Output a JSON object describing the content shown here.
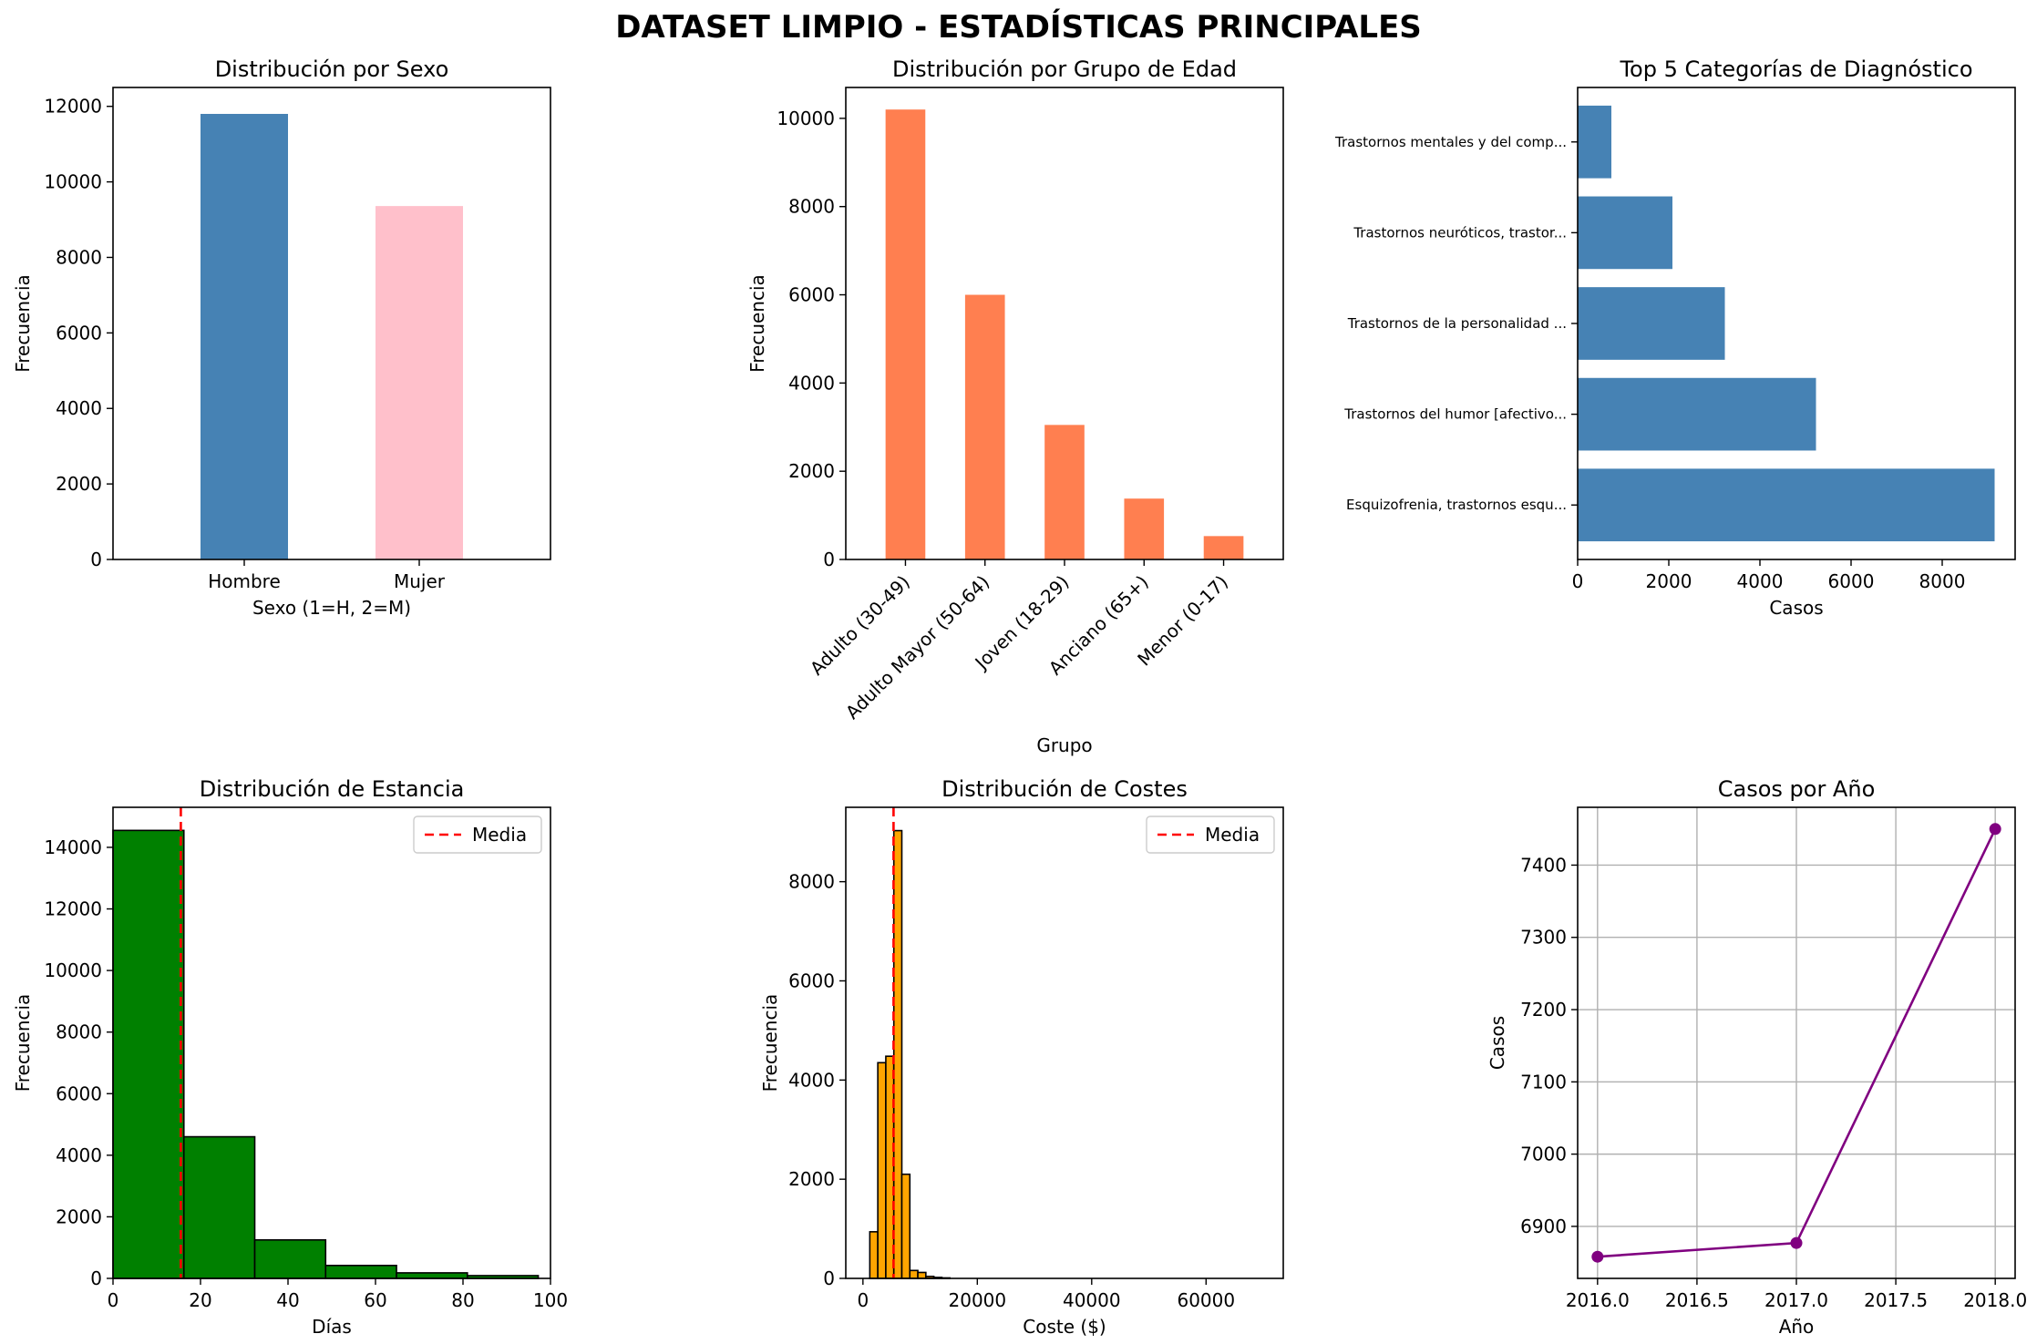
{
  "title": "DATASET LIMPIO - ESTADÍSTICAS PRINCIPALES",
  "chart_data": [
    {
      "id": "sexo",
      "type": "bar",
      "title": "Distribución por Sexo",
      "xlabel": "Sexo (1=H, 2=M)",
      "ylabel": "Frecuencia",
      "categories": [
        "Hombre",
        "Mujer"
      ],
      "values": [
        11800,
        9360
      ],
      "colors": [
        "#4682b4",
        "#ffc0cb"
      ],
      "ylim": [
        0,
        12500
      ],
      "yticks": [
        0,
        2000,
        4000,
        6000,
        8000,
        10000,
        12000
      ],
      "grid": false
    },
    {
      "id": "edad",
      "type": "bar",
      "title": "Distribución por Grupo de Edad",
      "xlabel": "Grupo",
      "ylabel": "Frecuencia",
      "categories": [
        "Adulto (30-49)",
        "Adulto Mayor (50-64)",
        "Joven (18-29)",
        "Anciano (65+)",
        "Menor (0-17)"
      ],
      "values": [
        10200,
        6000,
        3050,
        1380,
        530
      ],
      "color": "#ff7f50",
      "ylim": [
        0,
        10700
      ],
      "yticks": [
        0,
        2000,
        4000,
        6000,
        8000,
        10000
      ],
      "grid": false
    },
    {
      "id": "diagnostico",
      "type": "bar",
      "orientation": "horizontal",
      "title": "Top 5 Categorías de Diagnóstico",
      "xlabel": "Casos",
      "categories": [
        "Esquizofrenia, trastornos esqu...",
        "Trastornos del humor [afectivo...",
        "Trastornos de la personalidad ...",
        "Trastornos neuróticos, trastor...",
        "Trastornos mentales y del comp..."
      ],
      "values": [
        9150,
        5230,
        3230,
        2080,
        740
      ],
      "color": "#4682b4",
      "xlim": [
        0,
        9600
      ],
      "xticks": [
        0,
        2000,
        4000,
        6000,
        8000
      ],
      "grid": false
    },
    {
      "id": "estancia",
      "type": "bar",
      "subtype": "histogram",
      "title": "Distribución de Estancia",
      "xlabel": "Días",
      "ylabel": "Frecuencia",
      "bins": [
        [
          0,
          16.2
        ],
        [
          16.2,
          32.4
        ],
        [
          32.4,
          48.6
        ],
        [
          48.6,
          64.8
        ],
        [
          64.8,
          81
        ],
        [
          81,
          97.2
        ]
      ],
      "values": [
        14550,
        4600,
        1250,
        420,
        180,
        90
      ],
      "color": "#008000",
      "mean": 15.5,
      "mean_label": "Media",
      "xlim": [
        0,
        100
      ],
      "ylim": [
        0,
        15300
      ],
      "xticks": [
        0,
        20,
        40,
        60,
        80,
        100
      ],
      "yticks": [
        0,
        2000,
        4000,
        6000,
        8000,
        10000,
        12000,
        14000
      ],
      "legend": "top-right",
      "grid": false
    },
    {
      "id": "costes",
      "type": "bar",
      "subtype": "histogram",
      "title": "Distribución de Costes",
      "xlabel": "Coste ($)",
      "ylabel": "Frecuencia",
      "bins": [
        [
          1200,
          2600
        ],
        [
          2600,
          4000
        ],
        [
          4000,
          5400
        ],
        [
          5400,
          6800
        ],
        [
          6800,
          8200
        ],
        [
          8200,
          9600
        ],
        [
          9600,
          11000
        ],
        [
          11000,
          12400
        ],
        [
          12400,
          13800
        ],
        [
          13800,
          15200
        ]
      ],
      "values": [
        940,
        4350,
        4480,
        9030,
        2100,
        160,
        120,
        40,
        20,
        10
      ],
      "color": "#ffa500",
      "mean": 5350,
      "mean_label": "Media",
      "xlim": [
        -3000,
        73500
      ],
      "ylim": [
        0,
        9500
      ],
      "xticks": [
        0,
        20000,
        40000,
        60000
      ],
      "yticks": [
        0,
        2000,
        4000,
        6000,
        8000
      ],
      "legend": "top-right",
      "grid": false
    },
    {
      "id": "anio",
      "type": "line",
      "title": "Casos por Año",
      "xlabel": "Año",
      "ylabel": "Casos",
      "x": [
        2016,
        2017,
        2018
      ],
      "y": [
        6858,
        6877,
        7450
      ],
      "color": "#800080",
      "xlim": [
        1995.9,
        2018.1
      ],
      "ylim": [
        6828,
        7480
      ],
      "xticks": [
        2016.0,
        2016.5,
        2017.0,
        2017.5,
        2018.0
      ],
      "yticks": [
        6900,
        7000,
        7100,
        7200,
        7300,
        7400
      ],
      "grid": true
    }
  ]
}
